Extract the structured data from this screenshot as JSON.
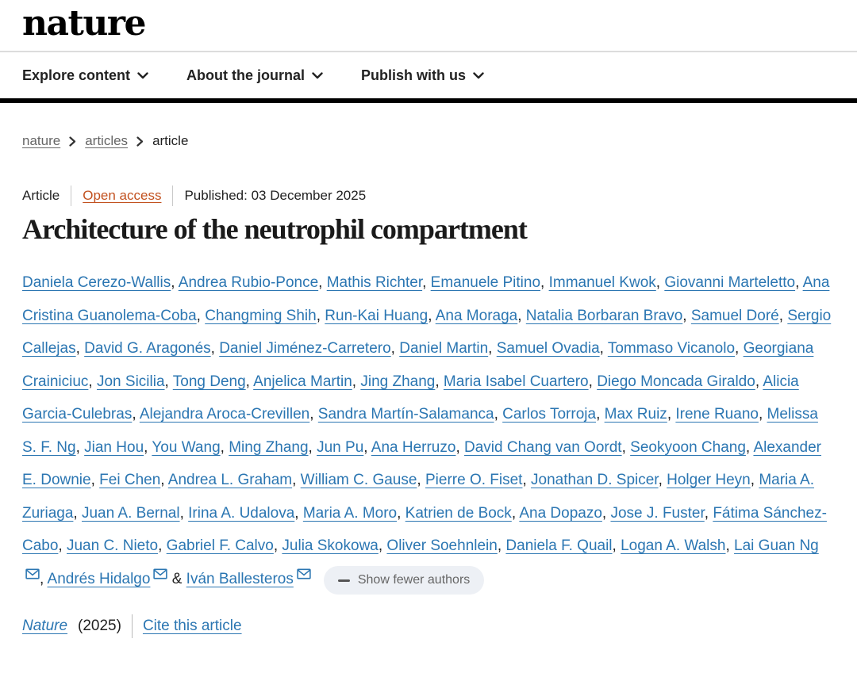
{
  "header": {
    "logo": "nature"
  },
  "nav": {
    "items": [
      {
        "label": "Explore content"
      },
      {
        "label": "About the journal"
      },
      {
        "label": "Publish with us"
      }
    ]
  },
  "breadcrumb": {
    "items": [
      "nature",
      "articles",
      "article"
    ]
  },
  "article": {
    "type_label": "Article",
    "access_label": "Open access",
    "published_label": "Published: 03 December 2025",
    "title": "Architecture of the neutrophil compartment",
    "authors_joiner": "&",
    "authors": [
      {
        "name": "Daniela Cerezo-Wallis",
        "email": false
      },
      {
        "name": "Andrea Rubio-Ponce",
        "email": false
      },
      {
        "name": "Mathis Richter",
        "email": false
      },
      {
        "name": "Emanuele Pitino",
        "email": false
      },
      {
        "name": "Immanuel Kwok",
        "email": false
      },
      {
        "name": "Giovanni Marteletto",
        "email": false
      },
      {
        "name": "Ana Cristina Guanolema-Coba",
        "email": false
      },
      {
        "name": "Changming Shih",
        "email": false
      },
      {
        "name": "Run-Kai Huang",
        "email": false
      },
      {
        "name": "Ana Moraga",
        "email": false
      },
      {
        "name": "Natalia Borbaran Bravo",
        "email": false
      },
      {
        "name": "Samuel Doré",
        "email": false
      },
      {
        "name": "Sergio Callejas",
        "email": false
      },
      {
        "name": "David G. Aragonés",
        "email": false
      },
      {
        "name": "Daniel Jiménez-Carretero",
        "email": false
      },
      {
        "name": "Daniel Martin",
        "email": false
      },
      {
        "name": "Samuel Ovadia",
        "email": false
      },
      {
        "name": "Tommaso Vicanolo",
        "email": false
      },
      {
        "name": "Georgiana Crainiciuc",
        "email": false
      },
      {
        "name": "Jon Sicilia",
        "email": false
      },
      {
        "name": "Tong Deng",
        "email": false
      },
      {
        "name": "Anjelica Martin",
        "email": false
      },
      {
        "name": "Jing Zhang",
        "email": false
      },
      {
        "name": "Maria Isabel Cuartero",
        "email": false
      },
      {
        "name": "Diego Moncada Giraldo",
        "email": false
      },
      {
        "name": "Alicia Garcia-Culebras",
        "email": false
      },
      {
        "name": "Alejandra Aroca-Crevillen",
        "email": false
      },
      {
        "name": "Sandra Martín-Salamanca",
        "email": false
      },
      {
        "name": "Carlos Torroja",
        "email": false
      },
      {
        "name": "Max Ruiz",
        "email": false
      },
      {
        "name": "Irene Ruano",
        "email": false
      },
      {
        "name": "Melissa S. F. Ng",
        "email": false
      },
      {
        "name": "Jian Hou",
        "email": false
      },
      {
        "name": "You Wang",
        "email": false
      },
      {
        "name": "Ming Zhang",
        "email": false
      },
      {
        "name": "Jun Pu",
        "email": false
      },
      {
        "name": "Ana Herruzo",
        "email": false
      },
      {
        "name": "David Chang van Oordt",
        "email": false
      },
      {
        "name": "Seokyoon Chang",
        "email": false
      },
      {
        "name": "Alexander E. Downie",
        "email": false
      },
      {
        "name": "Fei Chen",
        "email": false
      },
      {
        "name": "Andrea L. Graham",
        "email": false
      },
      {
        "name": "William C. Gause",
        "email": false
      },
      {
        "name": "Pierre O. Fiset",
        "email": false
      },
      {
        "name": "Jonathan D. Spicer",
        "email": false
      },
      {
        "name": "Holger Heyn",
        "email": false
      },
      {
        "name": "Maria A. Zuriaga",
        "email": false
      },
      {
        "name": "Juan A. Bernal",
        "email": false
      },
      {
        "name": "Irina A. Udalova",
        "email": false
      },
      {
        "name": "Maria A. Moro",
        "email": false
      },
      {
        "name": "Katrien de Bock",
        "email": false
      },
      {
        "name": "Ana Dopazo",
        "email": false
      },
      {
        "name": "Jose J. Fuster",
        "email": false
      },
      {
        "name": "Fátima Sánchez-Cabo",
        "email": false
      },
      {
        "name": "Juan C. Nieto",
        "email": false
      },
      {
        "name": "Gabriel F. Calvo",
        "email": false
      },
      {
        "name": "Julia Skokowa",
        "email": false
      },
      {
        "name": "Oliver Soehnlein",
        "email": false
      },
      {
        "name": "Daniela F. Quail",
        "email": false
      },
      {
        "name": "Logan A. Walsh",
        "email": false
      },
      {
        "name": "Lai Guan Ng",
        "email": true
      },
      {
        "name": "Andrés Hidalgo",
        "email": true
      },
      {
        "name": "Iván Ballesteros",
        "email": true
      }
    ],
    "show_fewer_label": "Show fewer authors",
    "journal_name": "Nature",
    "journal_year": "(2025)",
    "cite_label": "Cite this article"
  },
  "colors": {
    "link_blue": "#2b76b2",
    "open_access_orange": "#c2511f",
    "nav_black": "#000000",
    "breadcrumb_gray": "#666666",
    "pill_background": "#edf0f5"
  }
}
